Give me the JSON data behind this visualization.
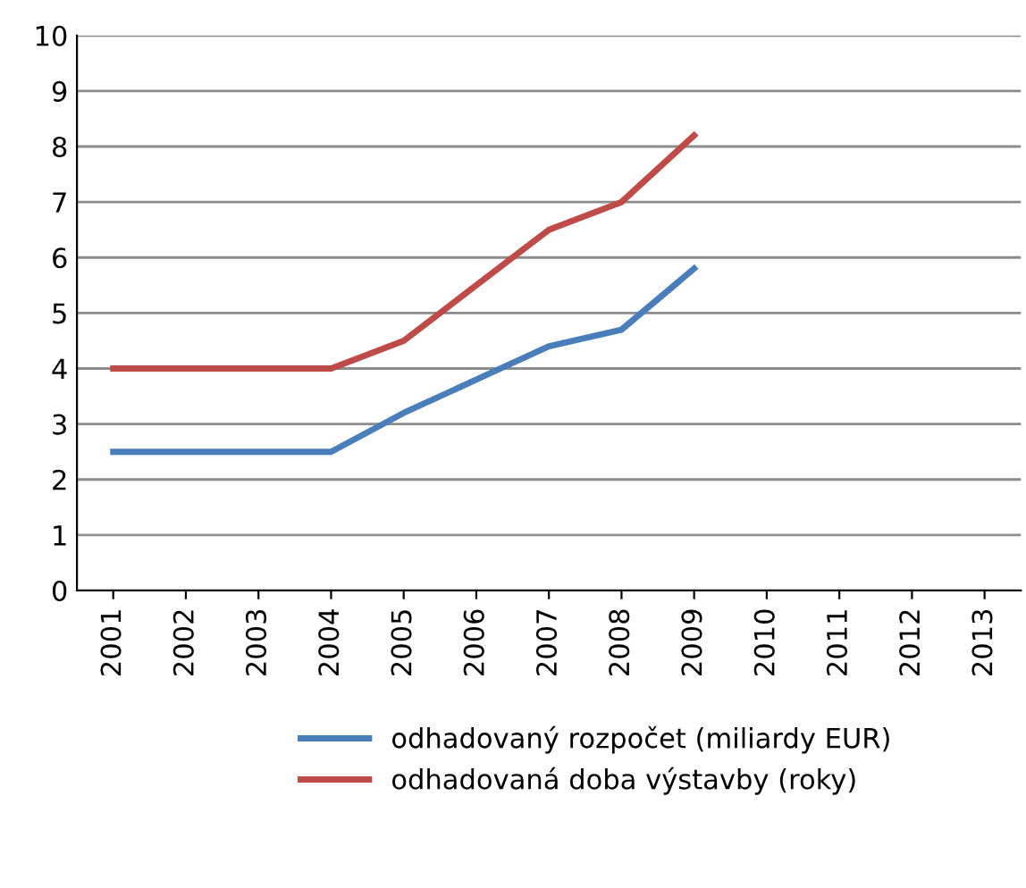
{
  "chart_data": {
    "type": "line",
    "categories": [
      "2001",
      "2002",
      "2003",
      "2004",
      "2005",
      "2006",
      "2007",
      "2008",
      "2009",
      "2010",
      "2011",
      "2012",
      "2013"
    ],
    "series": [
      {
        "name": "odhadovaný rozpočet (miliardy EUR)",
        "color": "#4a7ebb",
        "values": [
          2.5,
          2.5,
          2.5,
          2.5,
          3.2,
          3.8,
          4.4,
          4.7,
          5.8,
          null,
          null,
          null,
          null
        ]
      },
      {
        "name": "odhadovaná doba výstavby (roky)",
        "color": "#be4b48",
        "values": [
          4,
          4,
          4,
          4,
          4.5,
          5.5,
          6.5,
          7,
          8.2,
          null,
          null,
          null,
          null
        ]
      }
    ],
    "ylim": [
      0,
      10
    ],
    "yticks": [
      0,
      1,
      2,
      3,
      4,
      5,
      6,
      7,
      8,
      9,
      10
    ],
    "grid": "y",
    "legend": "bottom"
  }
}
